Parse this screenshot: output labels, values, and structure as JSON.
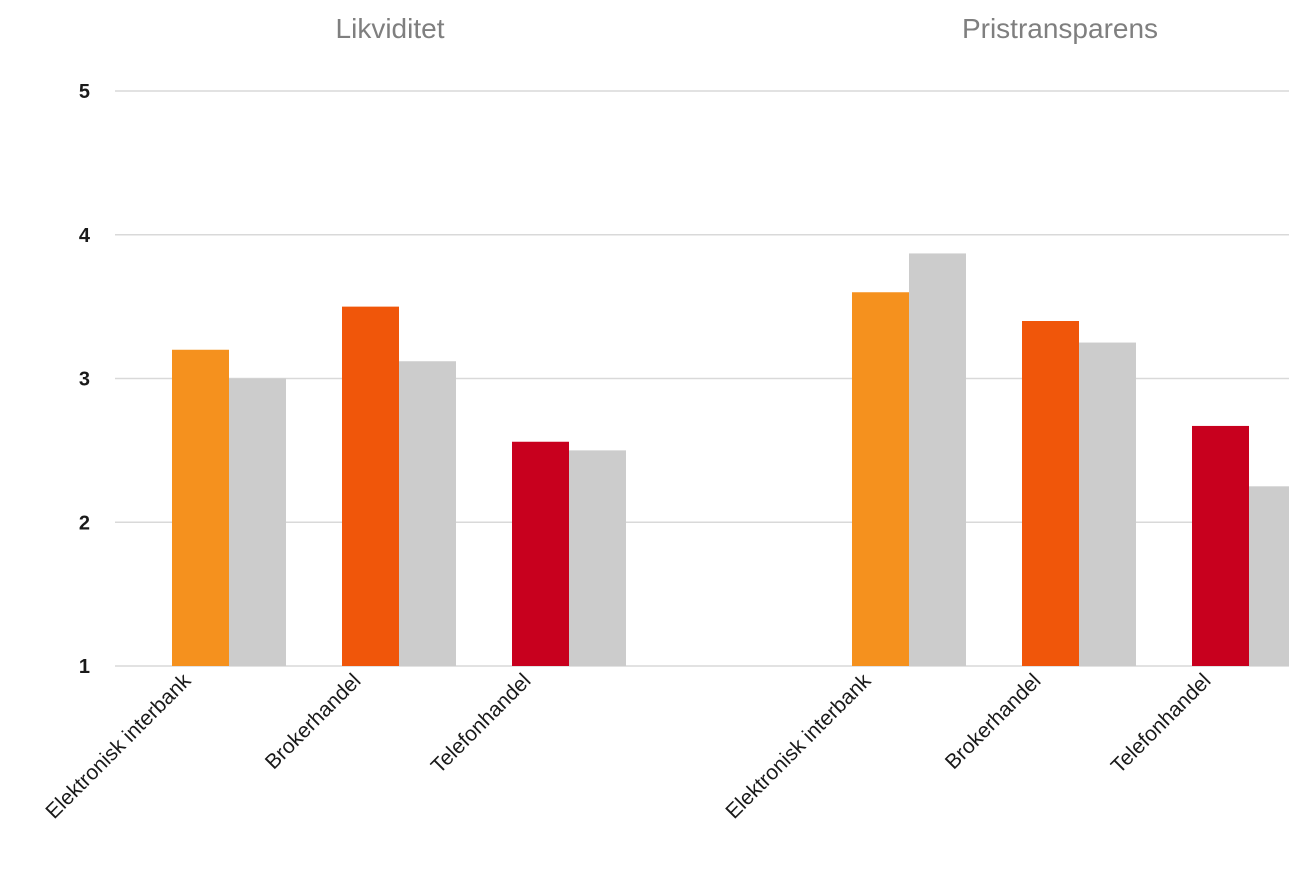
{
  "chart_data": {
    "type": "bar",
    "panels": [
      "Likviditet",
      "Pristransparens"
    ],
    "categories": [
      "Elektronisk interbank",
      "Brokerhandel",
      "Telefonhandel"
    ],
    "series": [
      {
        "panel": "Likviditet",
        "category_colors": [
          "#f5911e",
          "#f0560a",
          "#c8001e"
        ],
        "values": [
          3.2,
          3.5,
          2.56
        ]
      },
      {
        "panel": "Likviditet",
        "color": "#cccccc",
        "values": [
          3.0,
          3.12,
          2.5
        ]
      },
      {
        "panel": "Pristransparens",
        "category_colors": [
          "#f5911e",
          "#f0560a",
          "#c8001e"
        ],
        "values": [
          3.6,
          3.4,
          2.67
        ]
      },
      {
        "panel": "Pristransparens",
        "color": "#cccccc",
        "values": [
          3.87,
          3.25,
          2.25
        ]
      }
    ],
    "y_ticks": [
      "1",
      "2",
      "3",
      "4",
      "5"
    ],
    "ylim": [
      1,
      5
    ],
    "grid": true,
    "legend": "none"
  }
}
